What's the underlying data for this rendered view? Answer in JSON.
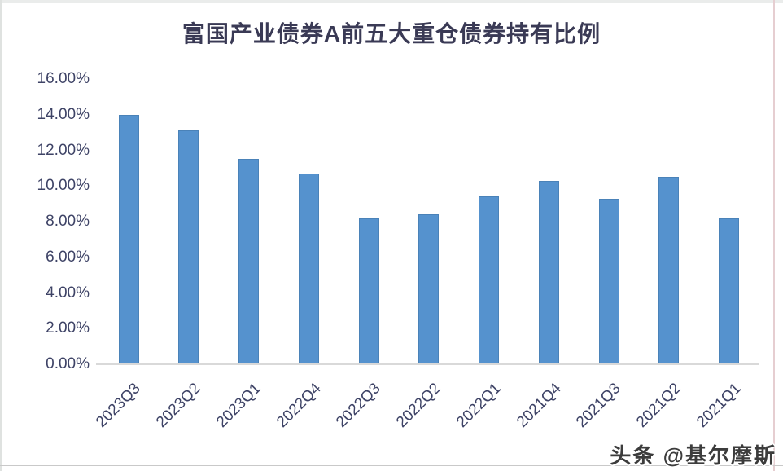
{
  "chart_data": {
    "type": "bar",
    "title": "富国产业债券A前五大重仓债券持有比例",
    "categories": [
      "2023Q3",
      "2023Q2",
      "2023Q1",
      "2022Q4",
      "2022Q3",
      "2022Q2",
      "2022Q1",
      "2021Q4",
      "2021Q3",
      "2021Q2",
      "2021Q1"
    ],
    "values": [
      14.0,
      13.1,
      11.5,
      10.7,
      8.2,
      8.4,
      9.4,
      10.3,
      9.3,
      10.5,
      8.2
    ],
    "value_unit": "%",
    "xlabel": "",
    "ylabel": "",
    "ylim": [
      0,
      16
    ],
    "ytick_labels": [
      "16.00%",
      "14.00%",
      "12.00%",
      "10.00%",
      "8.00%",
      "6.00%",
      "4.00%",
      "2.00%",
      "0.00%"
    ],
    "grid": false,
    "legend": "none",
    "bar_color": "#5592ce",
    "bar_border_color": "#4a82b8",
    "xlabel_rotation_deg": -45
  },
  "watermark": {
    "text": "头条 @基尔摩斯"
  }
}
